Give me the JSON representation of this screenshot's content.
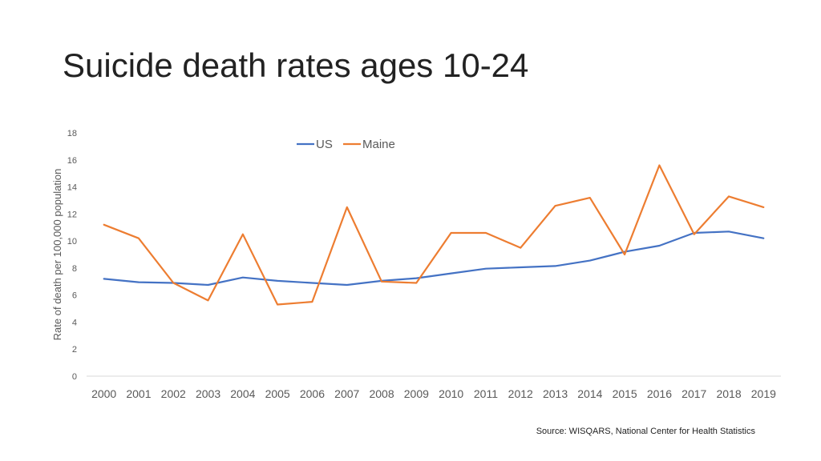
{
  "slide": {
    "title": "Suicide death rates ages 10-24",
    "source": "Source: WISQARS, National Center for Health Statistics"
  },
  "colors": {
    "us": "#4472C4",
    "maine": "#ED7D31",
    "axis": "#D9D9D9",
    "tick_text": "#595959"
  },
  "chart_data": {
    "type": "line",
    "title": "",
    "xlabel": "",
    "ylabel": "Rate of death per 100,000 population",
    "ylim": [
      0,
      18
    ],
    "yticks": [
      0,
      2,
      4,
      6,
      8,
      10,
      12,
      14,
      16,
      18
    ],
    "grid": false,
    "legend_position": "top",
    "categories": [
      "2000",
      "2001",
      "2002",
      "2003",
      "2004",
      "2005",
      "2006",
      "2007",
      "2008",
      "2009",
      "2010",
      "2011",
      "2012",
      "2013",
      "2014",
      "2015",
      "2016",
      "2017",
      "2018",
      "2019"
    ],
    "series": [
      {
        "name": "US",
        "color": "#4472C4",
        "values": [
          7.2,
          6.95,
          6.9,
          6.75,
          7.3,
          7.05,
          6.9,
          6.75,
          7.05,
          7.25,
          7.6,
          7.95,
          8.05,
          8.15,
          8.55,
          9.2,
          9.65,
          10.6,
          10.7,
          10.2
        ]
      },
      {
        "name": "Maine",
        "color": "#ED7D31",
        "values": [
          11.2,
          10.2,
          6.9,
          5.6,
          10.5,
          5.3,
          5.5,
          12.5,
          7.0,
          6.9,
          10.6,
          10.6,
          9.5,
          12.6,
          13.2,
          9.0,
          15.6,
          10.5,
          13.3,
          12.5
        ]
      }
    ]
  }
}
